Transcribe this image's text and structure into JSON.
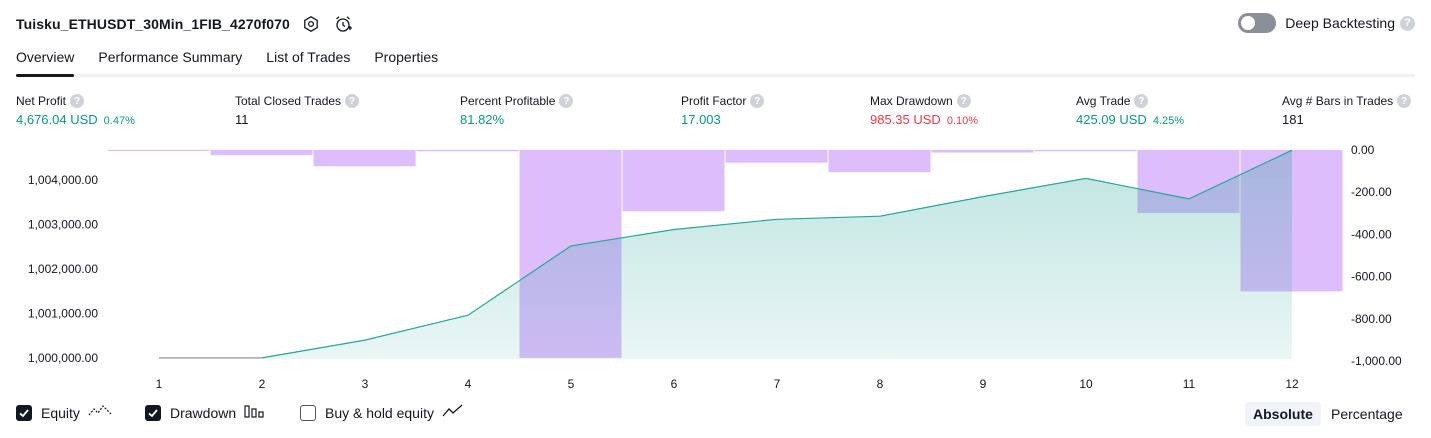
{
  "header": {
    "title": "Tuisku_ETHUSDT_30Min_1FIB_4270f070",
    "icons": [
      "settings-icon",
      "alert-clock-icon"
    ],
    "deep_backtesting_label": "Deep Backtesting",
    "deep_backtesting_on": false,
    "help_glyph": "?"
  },
  "tabs": [
    {
      "label": "Overview",
      "active": true
    },
    {
      "label": "Performance Summary",
      "active": false
    },
    {
      "label": "List of Trades",
      "active": false
    },
    {
      "label": "Properties",
      "active": false
    }
  ],
  "metrics": [
    {
      "label": "Net Profit",
      "value": "4,676.04 USD",
      "pct": "0.47%",
      "color": "green"
    },
    {
      "label": "Total Closed Trades",
      "value": "11",
      "pct": "",
      "color": "black"
    },
    {
      "label": "Percent Profitable",
      "value": "81.82%",
      "pct": "",
      "color": "green"
    },
    {
      "label": "Profit Factor",
      "value": "17.003",
      "pct": "",
      "color": "green"
    },
    {
      "label": "Max Drawdown",
      "value": "985.35 USD",
      "pct": "0.10%",
      "color": "red"
    },
    {
      "label": "Avg Trade",
      "value": "425.09 USD",
      "pct": "4.25%",
      "color": "green"
    },
    {
      "label": "Avg # Bars in Trades",
      "value": "181",
      "pct": "",
      "color": "black"
    }
  ],
  "chart_data": {
    "type": "area",
    "x": [
      1,
      2,
      3,
      4,
      5,
      6,
      7,
      8,
      9,
      10,
      11,
      12
    ],
    "x_ticks": [
      "1",
      "2",
      "3",
      "4",
      "5",
      "6",
      "7",
      "8",
      "9",
      "10",
      "11",
      "12"
    ],
    "left_axis": {
      "ticks": [
        "1,000,000.00",
        "1,001,000.00",
        "1,002,000.00",
        "1,003,000.00",
        "1,004,000.00"
      ],
      "tick_values": [
        1000000,
        1001000,
        1002000,
        1003000,
        1004000
      ],
      "ylim": [
        999975,
        1004680
      ]
    },
    "right_axis": {
      "ticks": [
        "0.00",
        "-200.00",
        "-400.00",
        "-600.00",
        "-800.00",
        "-1,000.00"
      ],
      "tick_values": [
        0,
        -200,
        -400,
        -600,
        -800,
        -1000
      ],
      "ylim": [
        -990,
        0
      ]
    },
    "series": [
      {
        "type": "area",
        "axis": "left",
        "color": "#26a69a",
        "values": [
          1000000,
          1000000,
          1000400,
          1000960,
          1002520,
          1002890,
          1003120,
          1003190,
          1003630,
          1004040,
          1003580,
          1004676
        ]
      },
      {
        "type": "bar",
        "axis": "right",
        "color": "#d1a4fb",
        "values": [
          -4,
          -25,
          -77,
          -6,
          -985,
          -290,
          -60,
          -105,
          -12,
          -6,
          -298,
          -670
        ]
      }
    ],
    "grid": false
  },
  "legend": {
    "equity": {
      "label": "Equity",
      "checked": true
    },
    "drawdown": {
      "label": "Drawdown",
      "checked": true
    },
    "buy_hold": {
      "label": "Buy & hold equity",
      "checked": false
    }
  },
  "mode": {
    "absolute": "Absolute",
    "percentage": "Percentage",
    "selected": "Absolute"
  },
  "colors": {
    "green": "#089981",
    "red": "#f23645",
    "equity_line": "#26a69a",
    "drawdown_bar": "#d1a4fb"
  }
}
